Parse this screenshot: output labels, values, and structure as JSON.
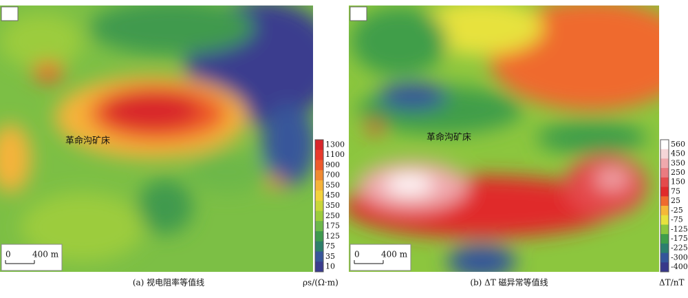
{
  "panels": [
    {
      "caption": "(a) 视电阻率等值线",
      "unit": "ρs/(Ω·m)",
      "annotation": "革命沟矿床",
      "scale_zero": "0",
      "scale_label": "400 m",
      "colorbar": {
        "labels": [
          1300,
          1100,
          900,
          700,
          550,
          450,
          350,
          250,
          175,
          125,
          75,
          35,
          10
        ],
        "colors": [
          "#d8262b",
          "#e83a2c",
          "#ee5a2c",
          "#f08a32",
          "#f5b33a",
          "#f3d23c",
          "#c9d63a",
          "#9ccc3c",
          "#6db84a",
          "#3f9a4e",
          "#2e7f6a",
          "#37569a",
          "#3a3c8e"
        ]
      }
    },
    {
      "caption": "(b) ΔT 磁异常等值线",
      "unit": "ΔT/nT",
      "annotation": "革命沟矿床",
      "scale_zero": "0",
      "scale_label": "400 m",
      "colorbar": {
        "labels": [
          560,
          450,
          350,
          250,
          150,
          75,
          25,
          -25,
          -75,
          -125,
          -175,
          -225,
          -300,
          -400
        ],
        "colors": [
          "#ffffff",
          "#f6d6d8",
          "#f0a9ad",
          "#ea7b80",
          "#e44a4c",
          "#e02a2c",
          "#ef6a2e",
          "#f5b838",
          "#e7e23e",
          "#8cc63e",
          "#3f9e4a",
          "#2c7f6e",
          "#34559a",
          "#38388a"
        ]
      }
    }
  ]
}
